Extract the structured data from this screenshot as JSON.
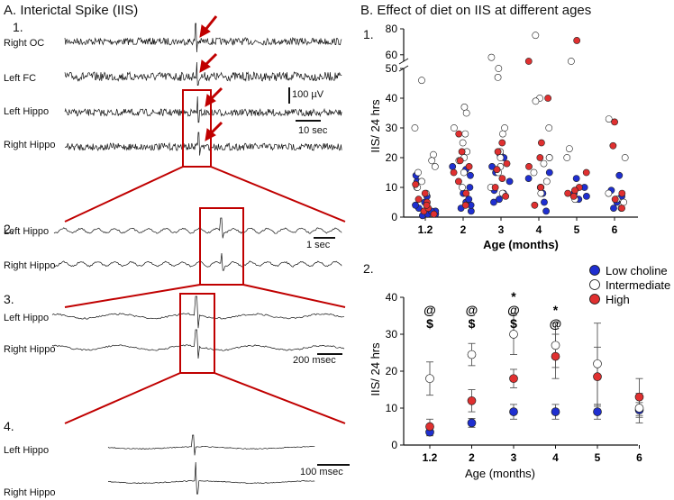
{
  "panel_a": {
    "title": "A. Interictal Spike (IIS)",
    "section1": {
      "number": "1.",
      "channels": [
        "Right OC",
        "Left FC",
        "Left Hippo",
        "Right Hippo"
      ],
      "scale_amplitude": "100 µV",
      "scale_time": "10 sec"
    },
    "section2": {
      "number": "2.",
      "channels": [
        "Left Hippo",
        "Right Hippo"
      ],
      "scale_time": "1 sec"
    },
    "section3": {
      "number": "3.",
      "channels": [
        "Left Hippo",
        "Right Hippo"
      ],
      "scale_time": "200 msec"
    },
    "section4": {
      "number": "4.",
      "channels": [
        "Left Hippo",
        "Right Hippo"
      ],
      "scale_time": "100 msec"
    },
    "colors": {
      "highlight": "#c00000",
      "trace": "#111111"
    }
  },
  "panel_b": {
    "title": "B.  Effect of diet on IIS at different ages",
    "legend": [
      {
        "label": "Low choline",
        "color": "#1f2fd0"
      },
      {
        "label": "Intermediate",
        "color": "#ffffff"
      },
      {
        "label": "High",
        "color": "#e03030"
      }
    ]
  },
  "chart_data": [
    {
      "type": "scatter",
      "panel_number": "1.",
      "title": "",
      "xlabel": "Age (months)",
      "ylabel": "IIS/ 24 hrs",
      "categories": [
        "1.2",
        "2",
        "3",
        "4",
        "5",
        "6"
      ],
      "y_ticks_lower": [
        0,
        10,
        20,
        30,
        40,
        50
      ],
      "y_ticks_upper": [
        60,
        80
      ],
      "ylim": [
        0,
        80
      ],
      "axis_break": [
        50,
        55
      ],
      "series": [
        {
          "name": "Low choline",
          "color": "#1f2fd0",
          "points": [
            [
              "1.2",
              1
            ],
            [
              "1.2",
              2
            ],
            [
              "1.2",
              3
            ],
            [
              "1.2",
              0.5
            ],
            [
              "1.2",
              5
            ],
            [
              "1.2",
              7
            ],
            [
              "1.2",
              10
            ],
            [
              "1.2",
              12
            ],
            [
              "1.2",
              14
            ],
            [
              "1.2",
              1
            ],
            [
              "1.2",
              2
            ],
            [
              "1.2",
              4
            ],
            [
              "2",
              2
            ],
            [
              "2",
              3
            ],
            [
              "2",
              4
            ],
            [
              "2",
              5
            ],
            [
              "2",
              8
            ],
            [
              "2",
              10
            ],
            [
              "2",
              14
            ],
            [
              "2",
              16
            ],
            [
              "2",
              17
            ],
            [
              "2",
              6
            ],
            [
              "3",
              5
            ],
            [
              "3",
              6
            ],
            [
              "3",
              8
            ],
            [
              "3",
              9
            ],
            [
              "3",
              12
            ],
            [
              "3",
              15
            ],
            [
              "3",
              17
            ],
            [
              "3",
              20
            ],
            [
              "3",
              21
            ],
            [
              "3",
              22
            ],
            [
              "4",
              2
            ],
            [
              "4",
              5
            ],
            [
              "4",
              8
            ],
            [
              "4",
              10
            ],
            [
              "4",
              13
            ],
            [
              "4",
              15
            ],
            [
              "4",
              20
            ],
            [
              "5",
              6
            ],
            [
              "5",
              7
            ],
            [
              "5",
              8
            ],
            [
              "5",
              10
            ],
            [
              "5",
              13
            ],
            [
              "6",
              3
            ],
            [
              "6",
              5
            ],
            [
              "6",
              7
            ],
            [
              "6",
              9
            ],
            [
              "6",
              14
            ]
          ]
        },
        {
          "name": "Intermediate",
          "color": "#ffffff",
          "points": [
            [
              "1.2",
              46
            ],
            [
              "1.2",
              30
            ],
            [
              "1.2",
              21
            ],
            [
              "1.2",
              19
            ],
            [
              "1.2",
              17
            ],
            [
              "1.2",
              15
            ],
            [
              "1.2",
              12
            ],
            [
              "1.2",
              10
            ],
            [
              "1.2",
              8
            ],
            [
              "2",
              37
            ],
            [
              "2",
              35
            ],
            [
              "2",
              30
            ],
            [
              "2",
              28
            ],
            [
              "2",
              25
            ],
            [
              "2",
              22
            ],
            [
              "2",
              20
            ],
            [
              "2",
              19
            ],
            [
              "2",
              15
            ],
            [
              "2",
              10
            ],
            [
              "3",
              58
            ],
            [
              "3",
              50
            ],
            [
              "3",
              47
            ],
            [
              "3",
              30
            ],
            [
              "3",
              28
            ],
            [
              "3",
              22
            ],
            [
              "3",
              20
            ],
            [
              "3",
              17
            ],
            [
              "3",
              15
            ],
            [
              "3",
              10
            ],
            [
              "3",
              8
            ],
            [
              "4",
              75
            ],
            [
              "4",
              40
            ],
            [
              "4",
              39
            ],
            [
              "4",
              30
            ],
            [
              "4",
              20
            ],
            [
              "4",
              18
            ],
            [
              "4",
              15
            ],
            [
              "4",
              12
            ],
            [
              "4",
              10
            ],
            [
              "4",
              8
            ],
            [
              "5",
              55
            ],
            [
              "5",
              23
            ],
            [
              "5",
              20
            ],
            [
              "5",
              6
            ],
            [
              "6",
              33
            ],
            [
              "6",
              20
            ],
            [
              "6",
              8
            ],
            [
              "6",
              6
            ],
            [
              "6",
              5
            ],
            [
              "6",
              3
            ]
          ]
        },
        {
          "name": "High",
          "color": "#e03030",
          "points": [
            [
              "1.2",
              2
            ],
            [
              "1.2",
              3
            ],
            [
              "1.2",
              5
            ],
            [
              "1.2",
              8
            ],
            [
              "1.2",
              11
            ],
            [
              "1.2",
              1
            ],
            [
              "1.2",
              6
            ],
            [
              "1.2",
              4
            ],
            [
              "2",
              4
            ],
            [
              "2",
              8
            ],
            [
              "2",
              12
            ],
            [
              "2",
              15
            ],
            [
              "2",
              17
            ],
            [
              "2",
              19
            ],
            [
              "2",
              22
            ],
            [
              "2",
              28
            ],
            [
              "3",
              7
            ],
            [
              "3",
              10
            ],
            [
              "3",
              13
            ],
            [
              "3",
              16
            ],
            [
              "3",
              18
            ],
            [
              "3",
              22
            ],
            [
              "3",
              25
            ],
            [
              "4",
              55
            ],
            [
              "4",
              40
            ],
            [
              "4",
              25
            ],
            [
              "4",
              20
            ],
            [
              "4",
              17
            ],
            [
              "4",
              10
            ],
            [
              "4",
              4
            ],
            [
              "5",
              71
            ],
            [
              "5",
              15
            ],
            [
              "5",
              10
            ],
            [
              "5",
              9
            ],
            [
              "5",
              8
            ],
            [
              "5",
              7
            ],
            [
              "6",
              32
            ],
            [
              "6",
              24
            ],
            [
              "6",
              8
            ],
            [
              "6",
              6
            ],
            [
              "6",
              3
            ]
          ]
        }
      ]
    },
    {
      "type": "line",
      "panel_number": "2.",
      "title": "",
      "xlabel": "Age (months)",
      "ylabel": "IIS/ 24 hrs",
      "categories": [
        "1.2",
        "2",
        "3",
        "4",
        "5",
        "6"
      ],
      "y_ticks": [
        0,
        10,
        20,
        30,
        40
      ],
      "ylim": [
        0,
        40
      ],
      "series": [
        {
          "name": "Low choline",
          "color": "#1f2fd0",
          "values": [
            3.5,
            6,
            9,
            9,
            9,
            9.5
          ],
          "errors": [
            1,
            1.2,
            2,
            2,
            2,
            2
          ]
        },
        {
          "name": "Intermediate",
          "color": "#ffffff",
          "values": [
            18,
            24.5,
            30,
            27,
            22,
            10
          ],
          "errors": [
            4.5,
            3,
            5.5,
            6,
            11,
            4
          ]
        },
        {
          "name": "High",
          "color": "#e03030",
          "values": [
            5,
            12,
            18,
            24,
            18.5,
            13
          ],
          "errors": [
            2,
            3,
            2.5,
            6,
            8,
            5
          ]
        }
      ],
      "annotations": [
        {
          "category": "1.2",
          "symbols": [
            "@",
            "$"
          ]
        },
        {
          "category": "2",
          "symbols": [
            "@",
            "$"
          ]
        },
        {
          "category": "3",
          "symbols": [
            "*",
            "@",
            "$"
          ]
        },
        {
          "category": "4",
          "symbols": [
            "*",
            "@"
          ]
        }
      ]
    }
  ]
}
